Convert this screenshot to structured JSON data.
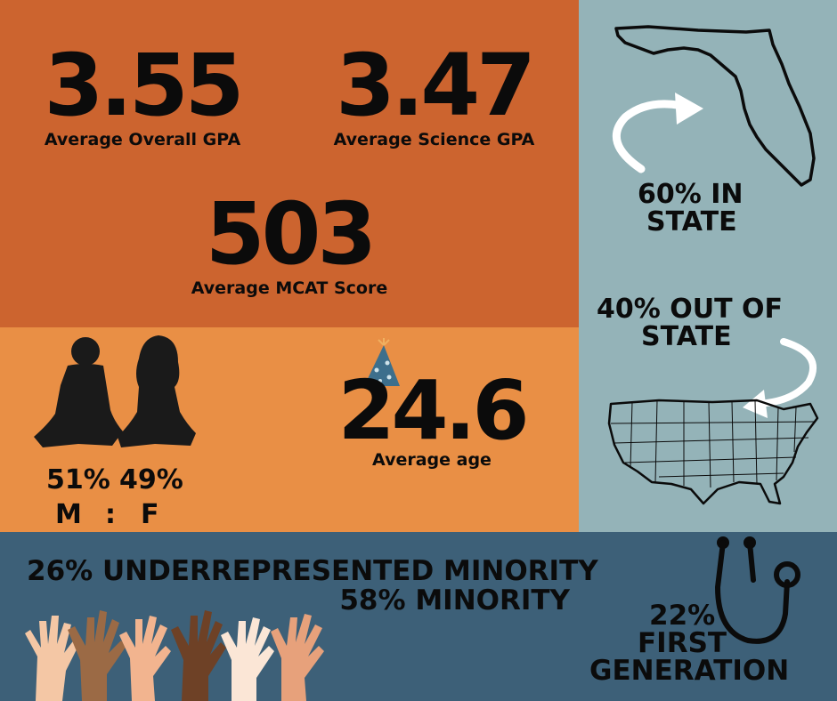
{
  "stats": {
    "overall_gpa_value": "3.55",
    "overall_gpa_label": "Average Overall GPA",
    "science_gpa_value": "3.47",
    "science_gpa_label": "Average Science GPA",
    "mcat_value": "503",
    "mcat_label": "Average MCAT Score"
  },
  "demographics": {
    "male_pct": "51%",
    "female_pct": "49%",
    "male_letter": "M",
    "separator": ":",
    "female_letter": "F",
    "age_value": "24.6",
    "age_label": "Average age"
  },
  "residency": {
    "in_state_line1": "60% IN",
    "in_state_line2": "STATE",
    "out_state_line1": "40% OUT OF",
    "out_state_line2": "STATE"
  },
  "diversity": {
    "urm_line": "26% UNDERREPRESENTED MINORITY",
    "minority_line": "58% MINORITY",
    "first_gen_line1": "22%",
    "first_gen_line2": "FIRST",
    "first_gen_line3": "GENERATION"
  },
  "icons": [
    "florida-map-icon",
    "curved-arrow-icon",
    "usa-map-icon",
    "people-silhouette-icon",
    "party-hat-icon",
    "stethoscope-icon",
    "raised-hands-icon"
  ],
  "colors": {
    "stats_panel": "#cc642f",
    "gender_panel": "#e98f45",
    "state_panel": "#94b3b8",
    "bottom_panel": "#3d6078",
    "text": "#0b0b0b"
  }
}
